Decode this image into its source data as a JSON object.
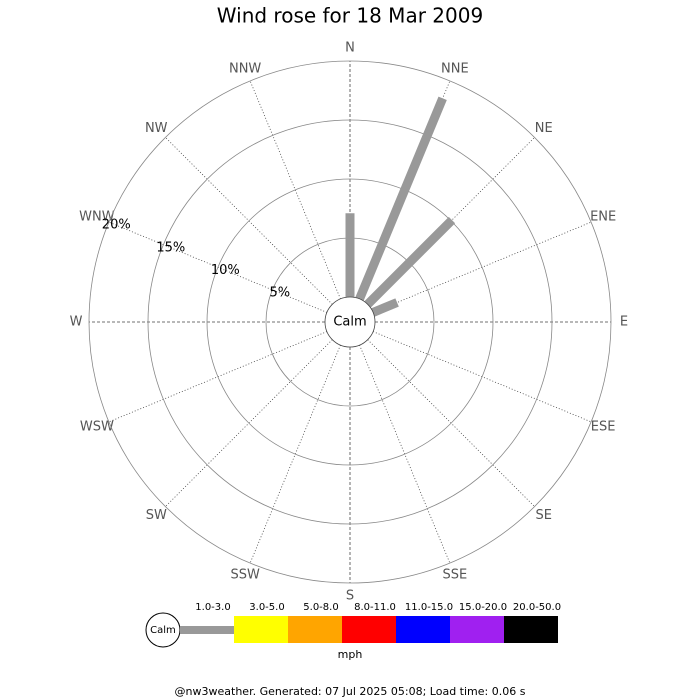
{
  "chart_data": {
    "type": "windrose",
    "title": "Wind rose for 18 Mar 2009",
    "center_label": "Calm",
    "directions": [
      "N",
      "NNE",
      "NE",
      "ENE",
      "E",
      "ESE",
      "SE",
      "SSE",
      "S",
      "SSW",
      "SW",
      "WSW",
      "W",
      "WNW",
      "NW",
      "NNW"
    ],
    "values": [
      7.1,
      18.4,
      10.1,
      2.2,
      0,
      0,
      0,
      0,
      0,
      0,
      0,
      0,
      0,
      0,
      0,
      0
    ],
    "color": "#999999",
    "rlim": [
      0,
      20
    ],
    "rticks": [
      {
        "value": 5,
        "label": "5%"
      },
      {
        "value": 10,
        "label": "10%"
      },
      {
        "value": 15,
        "label": "15%"
      },
      {
        "value": 20,
        "label": "20%"
      }
    ],
    "legend": {
      "calm": "Calm",
      "unit": "mph",
      "bands": [
        {
          "label": "1.0-3.0",
          "color": "#999999"
        },
        {
          "label": "3.0-5.0",
          "color": "#ffff00"
        },
        {
          "label": "5.0-8.0",
          "color": "#ffa500"
        },
        {
          "label": "8.0-11.0",
          "color": "#ff0000"
        },
        {
          "label": "11.0-15.0",
          "color": "#0000ff"
        },
        {
          "label": "15.0-20.0",
          "color": "#a020f0"
        },
        {
          "label": "20.0-50.0",
          "color": "#000000"
        }
      ]
    },
    "footer": "@nw3weather.  Generated: 07 Jul 2025 05:08; Load time: 0.06 s"
  }
}
